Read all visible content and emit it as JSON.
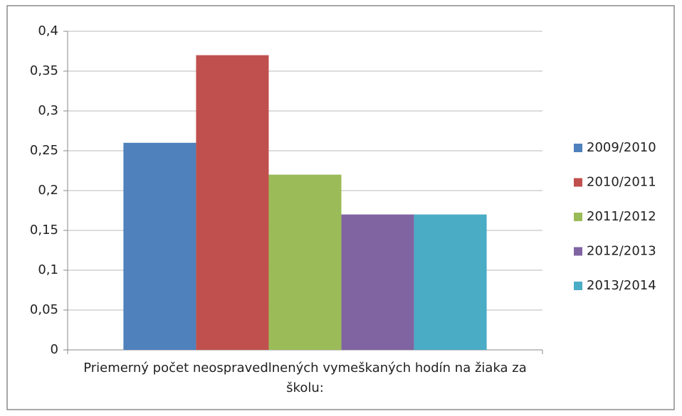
{
  "chart_data": {
    "type": "bar",
    "categories": [
      "Priemerný počet neospravedlnených vymeškaných hodín na žiaka za školu:"
    ],
    "series": [
      {
        "name": "2009/2010",
        "color": "#4f81bd",
        "values": [
          0.26
        ]
      },
      {
        "name": "2010/2011",
        "color": "#c0504d",
        "values": [
          0.37
        ]
      },
      {
        "name": "2011/2012",
        "color": "#9bbb59",
        "values": [
          0.22
        ]
      },
      {
        "name": "2012/2013",
        "color": "#8064a2",
        "values": [
          0.17
        ]
      },
      {
        "name": "2013/2014",
        "color": "#4bacc6",
        "values": [
          0.17
        ]
      }
    ],
    "ylim": [
      0,
      0.4
    ],
    "yticks": [
      0,
      {
        "value": 0.05,
        "label": "0,05"
      },
      {
        "value": 0.1,
        "label": "0,1"
      },
      {
        "value": 0.15,
        "label": "0,15"
      },
      {
        "value": 0.2,
        "label": "0,2"
      },
      {
        "value": 0.25,
        "label": "0,25"
      },
      {
        "value": 0.3,
        "label": "0,3"
      },
      {
        "value": 0.35,
        "label": "0,35"
      },
      {
        "value": 0.4,
        "label": "0,4"
      }
    ],
    "grid": true,
    "legend": "right"
  }
}
